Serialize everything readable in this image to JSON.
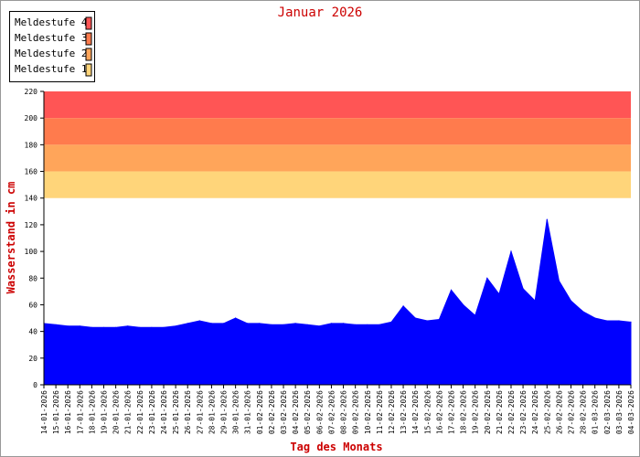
{
  "chart_data": {
    "type": "area",
    "title": "Januar 2026",
    "xlabel": "Tag des Monats",
    "ylabel": "Wasserstand in cm",
    "ylim": [
      0,
      220
    ],
    "yticks": [
      0,
      20,
      40,
      60,
      80,
      100,
      120,
      140,
      160,
      180,
      200,
      220
    ],
    "x_tick_labels": [
      "14-01-2026",
      "15-01-2026",
      "16-01-2026",
      "17-01-2026",
      "18-01-2026",
      "19-01-2026",
      "20-01-2026",
      "21-01-2026",
      "22-01-2026",
      "23-01-2026",
      "24-01-2026",
      "25-01-2026",
      "26-01-2026",
      "27-01-2026",
      "28-01-2026",
      "29-01-2026",
      "30-01-2026",
      "31-01-2026",
      "01-02-2026",
      "02-02-2026",
      "03-02-2026",
      "04-02-2026",
      "05-02-2026",
      "06-02-2026",
      "07-02-2026",
      "08-02-2026",
      "09-02-2026",
      "10-02-2026",
      "11-02-2026",
      "12-02-2026",
      "13-02-2026",
      "14-02-2026",
      "15-02-2026",
      "16-02-2026",
      "17-02-2026",
      "18-02-2026",
      "19-02-2026",
      "20-02-2026",
      "21-02-2026",
      "22-02-2026",
      "23-02-2026",
      "24-02-2026",
      "25-02-2026",
      "26-02-2026",
      "27-02-2026",
      "28-02-2026",
      "01-03-2026",
      "02-03-2026",
      "03-03-2026",
      "04-03-2026"
    ],
    "legend_position": "top-left",
    "bands": [
      {
        "label": "Meldestufe 4",
        "from": 200,
        "to": 220,
        "color": "#ff5555"
      },
      {
        "label": "Meldestufe 3",
        "from": 180,
        "to": 200,
        "color": "#ff7b4d"
      },
      {
        "label": "Meldestufe 2",
        "from": 160,
        "to": 180,
        "color": "#ffa55a"
      },
      {
        "label": "Meldestufe 1",
        "from": 140,
        "to": 160,
        "color": "#ffd57a"
      }
    ],
    "series": [
      {
        "color": "#0000ff",
        "x": [
          "14-01-2026",
          "15-01-2026",
          "16-01-2026",
          "17-01-2026",
          "18-01-2026",
          "19-01-2026",
          "20-01-2026",
          "21-01-2026",
          "22-01-2026",
          "23-01-2026",
          "24-01-2026",
          "25-01-2026",
          "26-01-2026",
          "27-01-2026",
          "28-01-2026",
          "29-01-2026",
          "30-01-2026",
          "31-01-2026",
          "01-02-2026",
          "02-02-2026",
          "03-02-2026",
          "04-02-2026",
          "05-02-2026",
          "06-02-2026",
          "07-02-2026",
          "08-02-2026",
          "09-02-2026",
          "10-02-2026",
          "11-02-2026",
          "12-02-2026",
          "13-02-2026",
          "14-02-2026",
          "15-02-2026",
          "16-02-2026",
          "17-02-2026",
          "18-02-2026",
          "19-02-2026",
          "20-02-2026",
          "21-02-2026",
          "22-02-2026",
          "23-02-2026",
          "24-02-2026",
          "25-02-2026",
          "26-02-2026",
          "27-02-2026",
          "28-02-2026",
          "01-03-2026",
          "02-03-2026",
          "03-03-2026",
          "04-03-2026"
        ],
        "values": [
          46,
          45,
          44,
          44,
          43,
          43,
          43,
          44,
          43,
          43,
          43,
          44,
          46,
          48,
          46,
          46,
          50,
          46,
          46,
          45,
          45,
          46,
          45,
          44,
          46,
          46,
          45,
          45,
          45,
          47,
          59,
          50,
          48,
          49,
          71,
          60,
          52,
          80,
          68,
          100,
          72,
          63,
          124,
          78,
          63,
          55,
          50,
          48,
          48,
          47
        ]
      }
    ]
  }
}
